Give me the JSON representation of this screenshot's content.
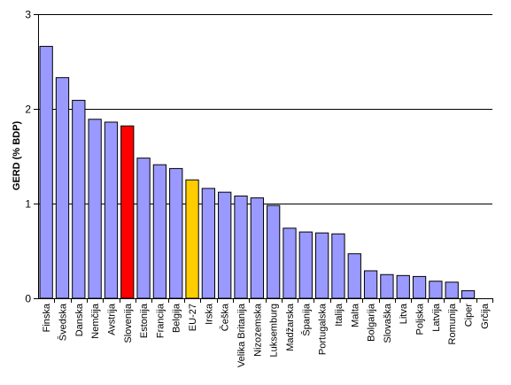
{
  "chart_data": {
    "type": "bar",
    "ylabel": "GERD (% BDP)",
    "ylim": [
      0,
      3
    ],
    "yticks": [
      "0",
      "1",
      "2",
      "3"
    ],
    "grid": true,
    "categories": [
      "Finska",
      "Švedska",
      "Danska",
      "Nemčija",
      "Avstrija",
      "Slovenija",
      "Estonija",
      "Francija",
      "Belgija",
      "EU-27",
      "Irska",
      "Češka",
      "Velika Britanija",
      "Nizozemska",
      "Luksemburg",
      "Madžarska",
      "Španija",
      "Portugalska",
      "Italija",
      "Malta",
      "Bolgarija",
      "Slovaška",
      "Litva",
      "Poljska",
      "Latvija",
      "Romunija",
      "Ciper",
      "Grčija"
    ],
    "values": [
      2.66,
      2.33,
      2.09,
      1.89,
      1.86,
      1.82,
      1.48,
      1.41,
      1.37,
      1.25,
      1.16,
      1.12,
      1.08,
      1.06,
      0.98,
      0.74,
      0.7,
      0.69,
      0.68,
      0.47,
      0.29,
      0.25,
      0.24,
      0.23,
      0.18,
      0.17,
      0.08,
      0
    ],
    "colors": {
      "default": "#9999FF",
      "Slovenija": "#FF0000",
      "EU-27": "#FFCC00"
    }
  }
}
